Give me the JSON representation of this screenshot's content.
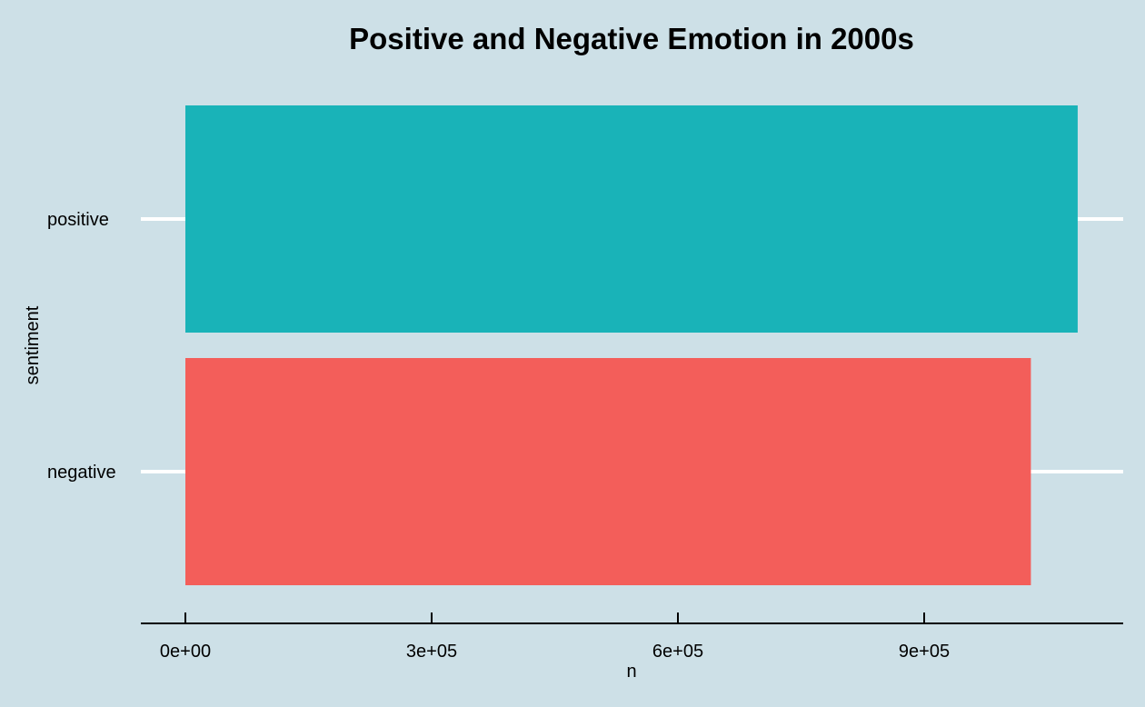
{
  "chart_data": {
    "type": "bar",
    "orientation": "horizontal",
    "title": "Positive and Negative Emotion in 2000s",
    "xlabel": "n",
    "ylabel": "sentiment",
    "categories": [
      "negative",
      "positive"
    ],
    "values": [
      1030000,
      1087000
    ],
    "colors": [
      "#f35e5a",
      "#19b3b8"
    ],
    "xlim": [
      0,
      1140000
    ],
    "x_ticks": [
      0,
      300000,
      600000,
      900000
    ],
    "x_tick_labels": [
      "0e+00",
      "3e+05",
      "6e+05",
      "9e+05"
    ],
    "grid": "horizontal major lines only",
    "legend": "none",
    "background_color": "#cde0e7",
    "grid_color": "#ffffff"
  }
}
